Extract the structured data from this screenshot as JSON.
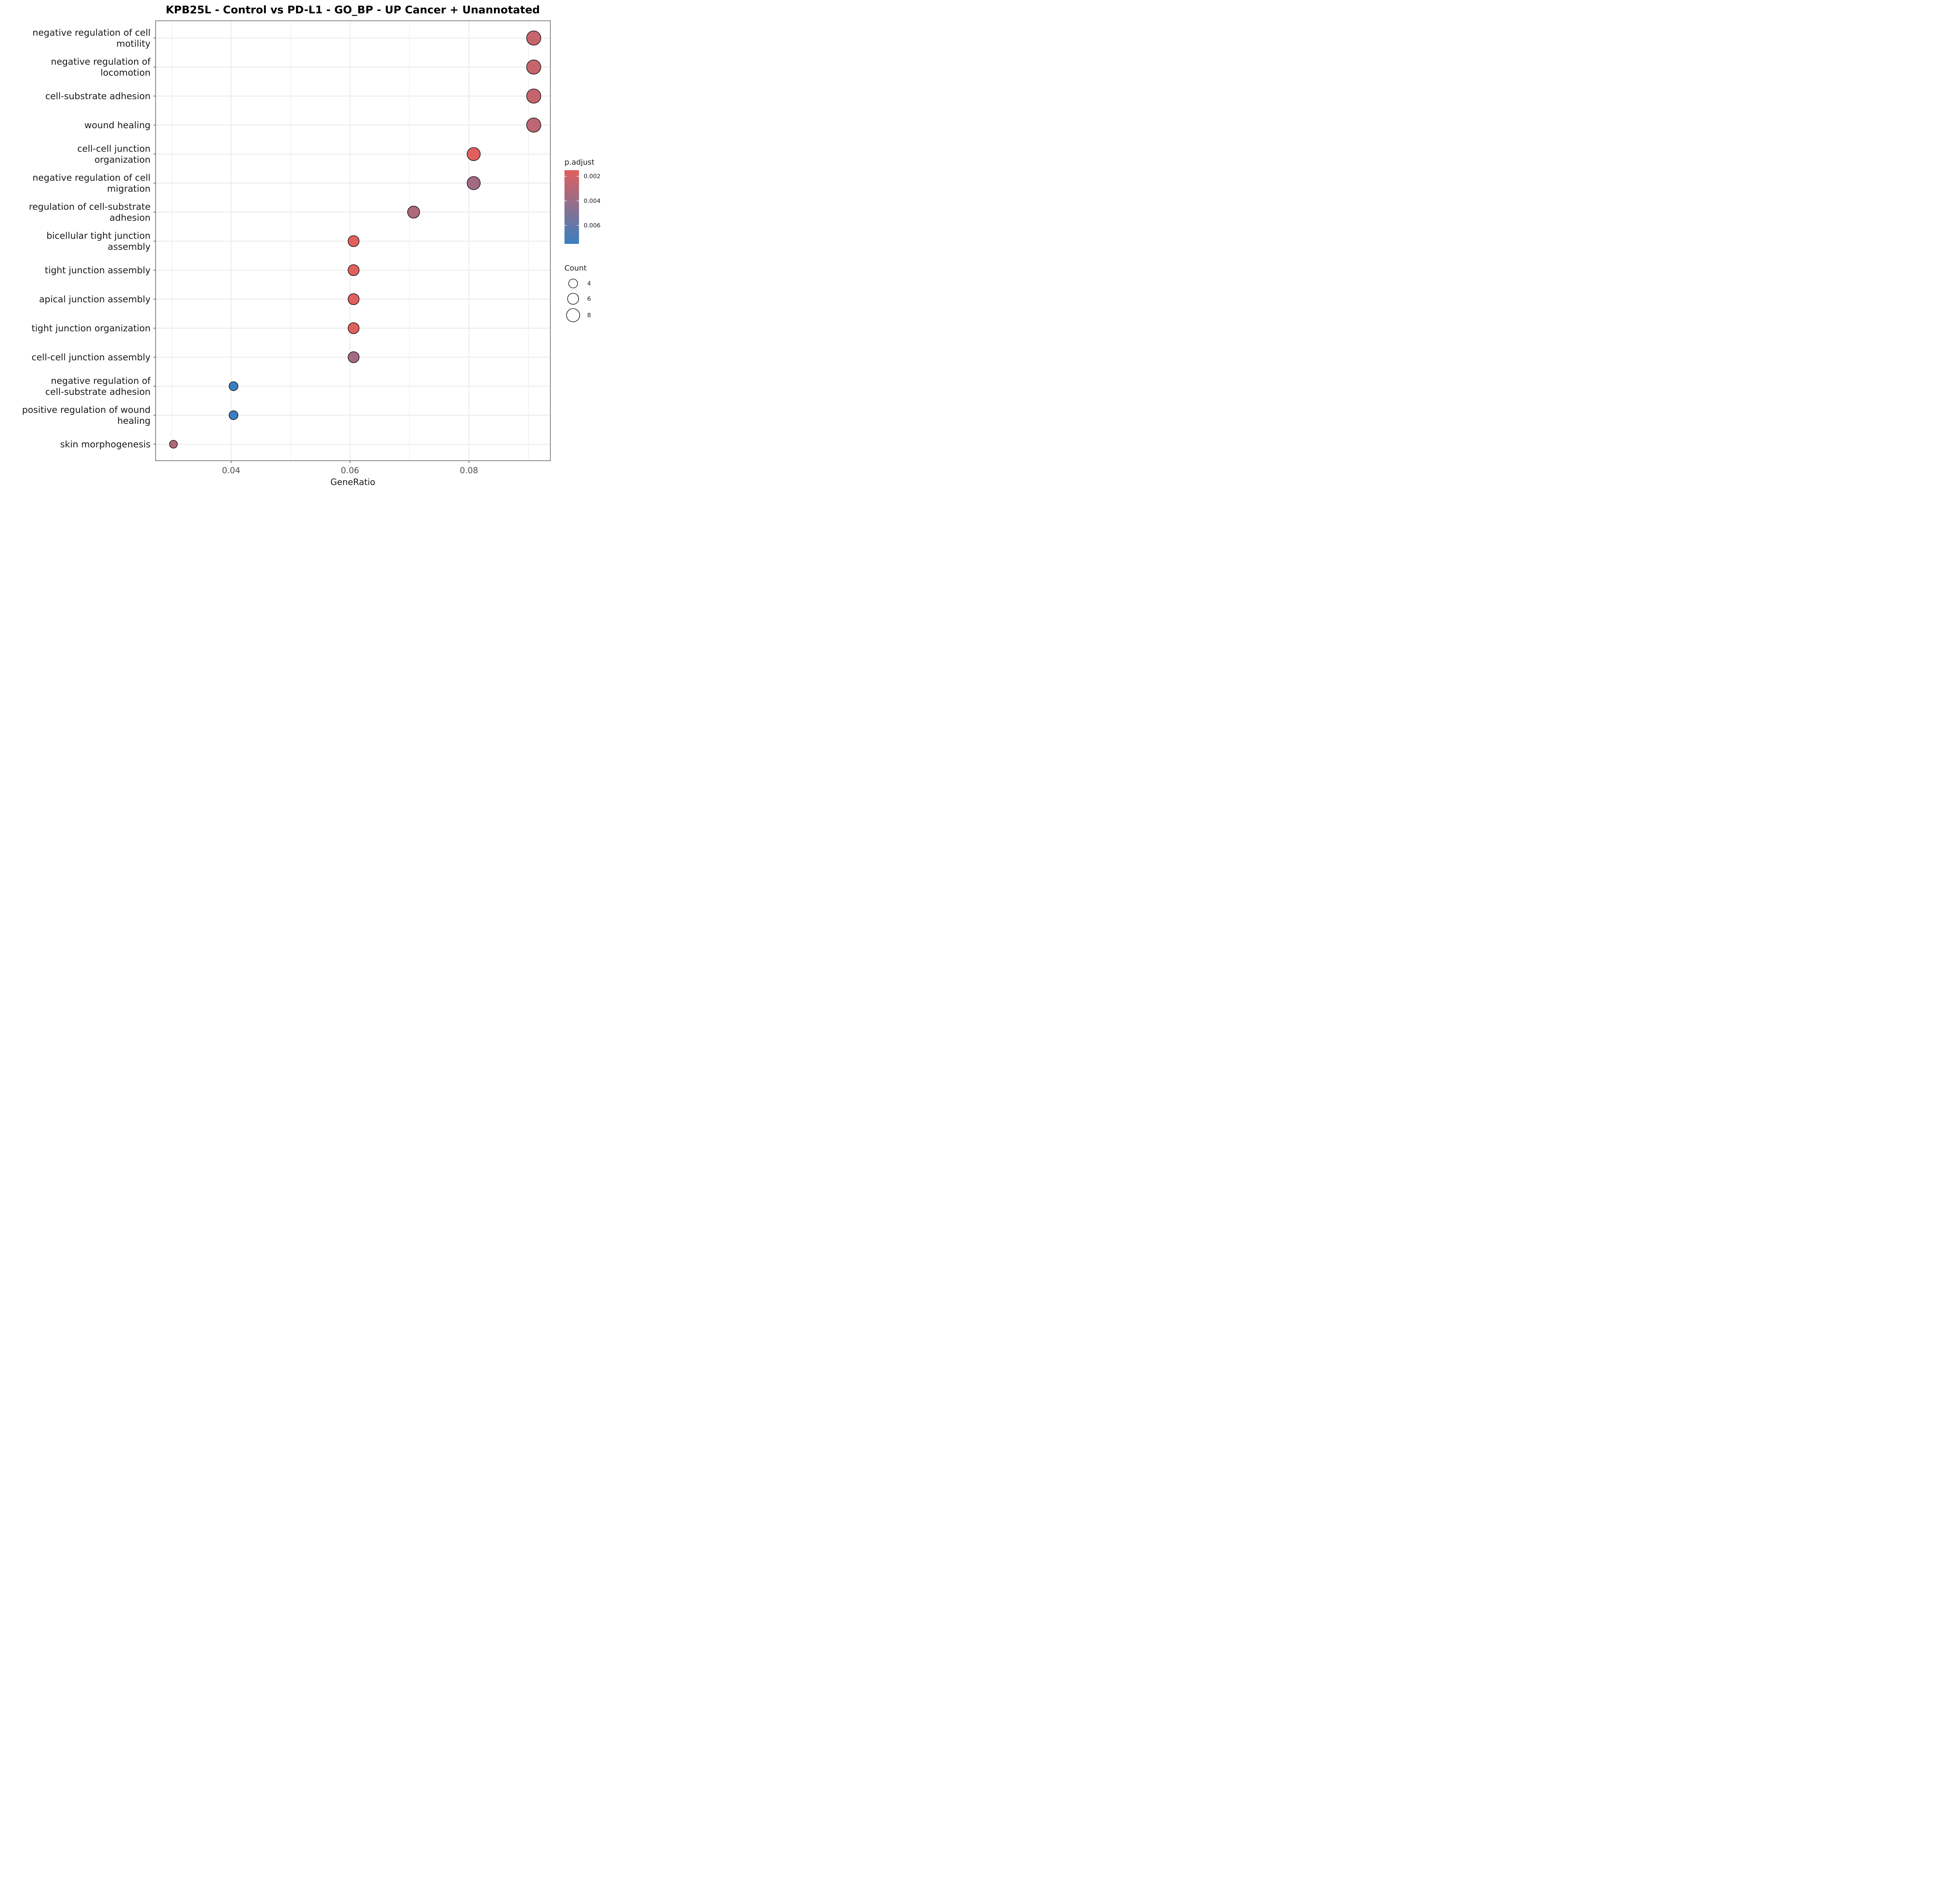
{
  "chart_data": {
    "type": "scatter",
    "title": "KPB25L - Control vs PD-L1 - GO_BP - UP  Cancer + Unannotated",
    "xlabel": "GeneRatio",
    "ylabel": "",
    "xlim": [
      0.0273,
      0.0937
    ],
    "x_ticks": [
      0.04,
      0.06,
      0.08
    ],
    "x_tick_labels": [
      "0.04",
      "0.06",
      "0.08"
    ],
    "grid": true,
    "categories": [
      [
        "negative regulation of cell",
        "motility"
      ],
      [
        "negative regulation of",
        "locomotion"
      ],
      [
        "cell-substrate adhesion"
      ],
      [
        "wound healing"
      ],
      [
        "cell-cell junction",
        "organization"
      ],
      [
        "negative regulation of cell",
        "migration"
      ],
      [
        "regulation of cell-substrate",
        "adhesion"
      ],
      [
        "bicellular tight junction",
        "assembly"
      ],
      [
        "tight junction assembly"
      ],
      [
        "apical junction assembly"
      ],
      [
        "tight junction organization"
      ],
      [
        "cell-cell junction assembly"
      ],
      [
        "negative regulation of",
        "cell-substrate adhesion"
      ],
      [
        "positive regulation of wound",
        "healing"
      ],
      [
        "skin morphogenesis"
      ]
    ],
    "points": [
      {
        "gene_ratio": 0.0909,
        "count": 9,
        "p_adjust": 0.0024
      },
      {
        "gene_ratio": 0.0909,
        "count": 9,
        "p_adjust": 0.0024
      },
      {
        "gene_ratio": 0.0909,
        "count": 9,
        "p_adjust": 0.0025
      },
      {
        "gene_ratio": 0.0909,
        "count": 9,
        "p_adjust": 0.0028
      },
      {
        "gene_ratio": 0.0808,
        "count": 8,
        "p_adjust": 0.0015
      },
      {
        "gene_ratio": 0.0808,
        "count": 8,
        "p_adjust": 0.0037
      },
      {
        "gene_ratio": 0.0707,
        "count": 7,
        "p_adjust": 0.0033
      },
      {
        "gene_ratio": 0.0606,
        "count": 6,
        "p_adjust": 0.0015
      },
      {
        "gene_ratio": 0.0606,
        "count": 6,
        "p_adjust": 0.0015
      },
      {
        "gene_ratio": 0.0606,
        "count": 6,
        "p_adjust": 0.0015
      },
      {
        "gene_ratio": 0.0606,
        "count": 6,
        "p_adjust": 0.0015
      },
      {
        "gene_ratio": 0.0606,
        "count": 6,
        "p_adjust": 0.0037
      },
      {
        "gene_ratio": 0.0404,
        "count": 4,
        "p_adjust": 0.0075
      },
      {
        "gene_ratio": 0.0404,
        "count": 4,
        "p_adjust": 0.0075
      },
      {
        "gene_ratio": 0.0303,
        "count": 3,
        "p_adjust": 0.0033
      }
    ],
    "color_legend": {
      "title": "p.adjust",
      "low_color": "#E0605E",
      "high_color": "#3A7FC0",
      "range": [
        0.0015,
        0.0075
      ],
      "ticks": [
        0.002,
        0.004,
        0.006
      ],
      "tick_labels": [
        "0.002",
        "0.004",
        "0.006"
      ]
    },
    "size_legend": {
      "title": "Count",
      "values": [
        4,
        6,
        8
      ],
      "labels": [
        "4",
        "6",
        "8"
      ]
    }
  }
}
